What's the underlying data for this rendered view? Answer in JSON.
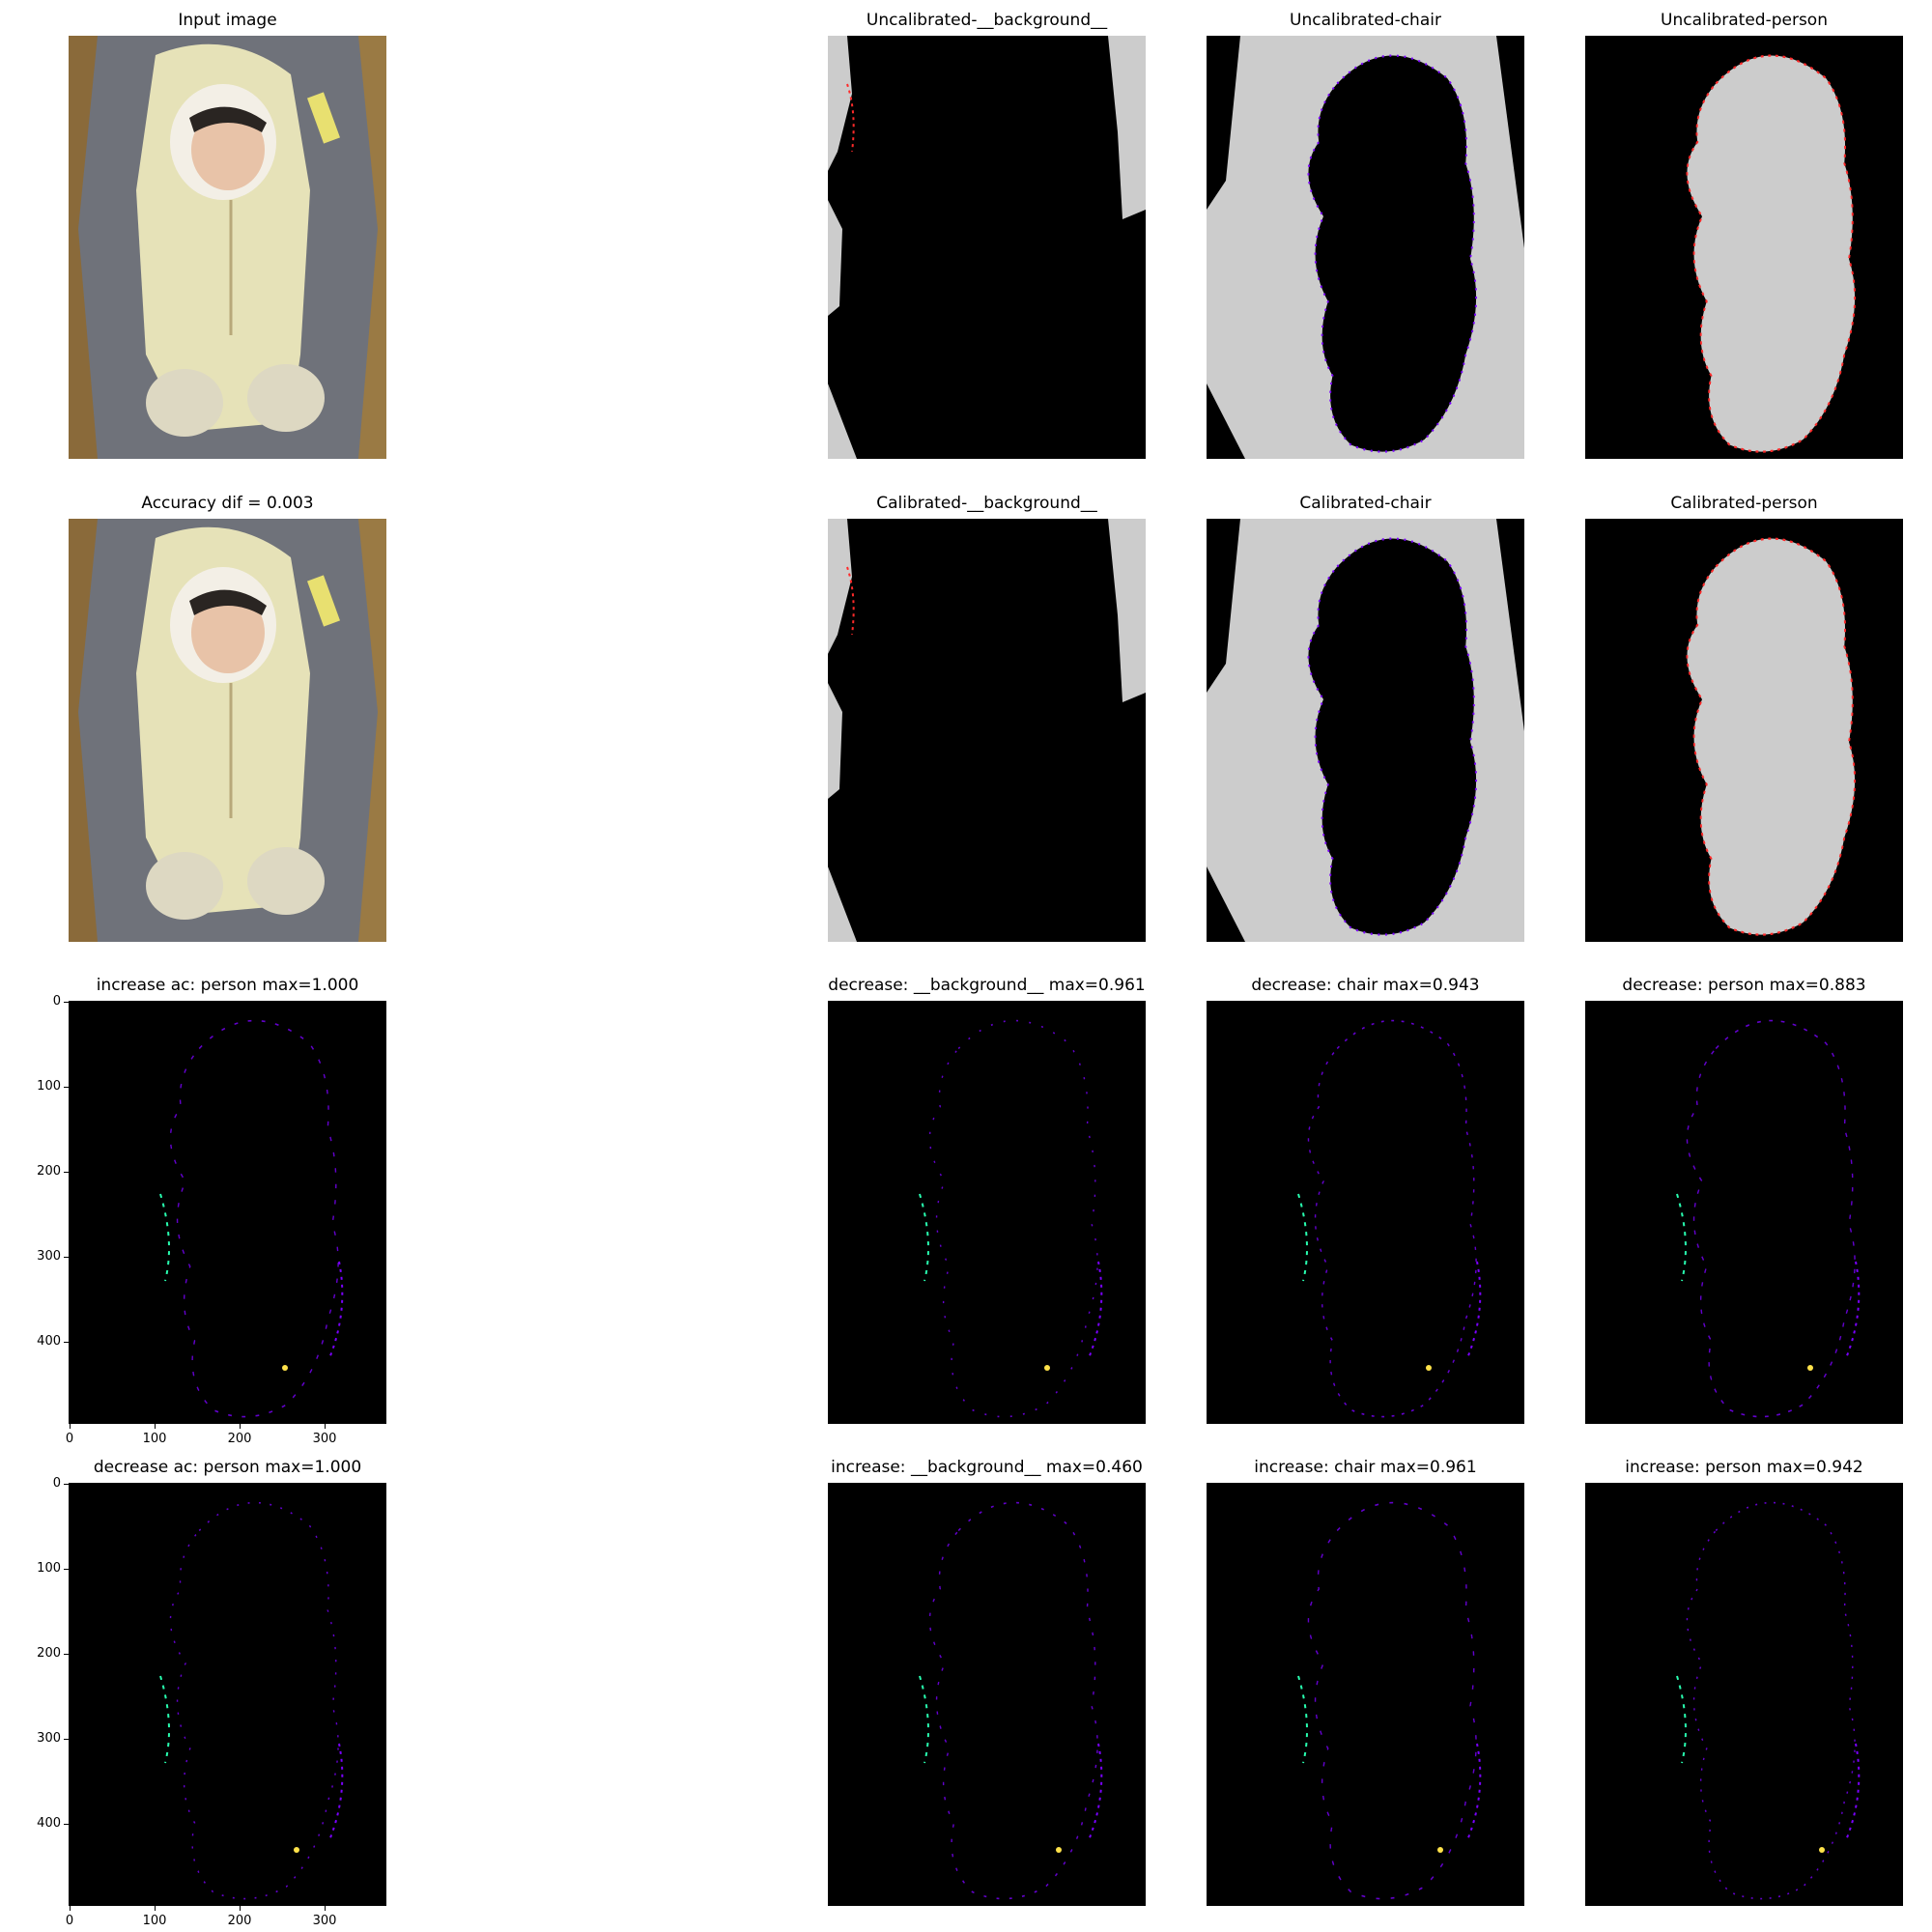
{
  "figure": {
    "rows": [
      {
        "panels": [
          {
            "title": "Input image",
            "kind": "photo"
          },
          {
            "title": "Uncalibrated-__background__",
            "kind": "mask-bg"
          },
          {
            "title": "Uncalibrated-chair",
            "kind": "mask-chair"
          },
          {
            "title": "Uncalibrated-person",
            "kind": "mask-person"
          }
        ]
      },
      {
        "panels": [
          {
            "title": "Accuracy dif = 0.003",
            "kind": "photo"
          },
          {
            "title": "Calibrated-__background__",
            "kind": "mask-bg"
          },
          {
            "title": "Calibrated-chair",
            "kind": "mask-chair"
          },
          {
            "title": "Calibrated-person",
            "kind": "mask-person"
          }
        ]
      },
      {
        "panels": [
          {
            "title": "increase ac: person max=1.000",
            "kind": "heat-axes"
          },
          {
            "title": "decrease: __background__ max=0.961",
            "kind": "heat"
          },
          {
            "title": "decrease: chair max=0.943",
            "kind": "heat"
          },
          {
            "title": "decrease: person max=0.883",
            "kind": "heat"
          }
        ]
      },
      {
        "panels": [
          {
            "title": "decrease ac: person max=1.000",
            "kind": "heat-axes"
          },
          {
            "title": "increase: __background__ max=0.460",
            "kind": "heat"
          },
          {
            "title": "increase: chair max=0.961",
            "kind": "heat"
          },
          {
            "title": "increase: person max=0.942",
            "kind": "heat"
          }
        ]
      }
    ],
    "y_ticks": [
      "0",
      "100",
      "200",
      "300",
      "400"
    ],
    "x_ticks": [
      "0",
      "100",
      "200",
      "300"
    ],
    "colors": {
      "mask_fg": "#cccccc",
      "mask_bg": "#000000",
      "edge_a": "#ff2a2a",
      "edge_b": "#7a00ff",
      "edge_c": "#28ffb0",
      "edge_d": "#ffe24a"
    }
  }
}
